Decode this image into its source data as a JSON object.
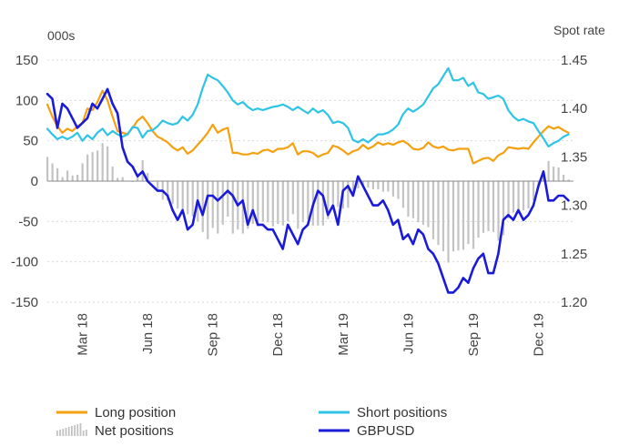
{
  "chart_data": {
    "type": "line",
    "title": "",
    "left_axis_label": "000s",
    "right_axis_label": "Spot rate",
    "left_ylim": [
      -150,
      150
    ],
    "left_ticks": [
      150,
      100,
      50,
      0,
      -50,
      -100,
      -150
    ],
    "left_tick_labels": [
      "150",
      "100",
      "50",
      "0",
      "-50",
      "-100",
      "-150"
    ],
    "right_ylim": [
      1.2,
      1.45
    ],
    "right_ticks": [
      1.45,
      1.4,
      1.35,
      1.3,
      1.25,
      1.2
    ],
    "right_tick_labels": [
      "1.45",
      "1.40",
      "1.35",
      "1.30",
      "1.25",
      "1.20"
    ],
    "x_tick_labels": [
      {
        "label": "Mar 18",
        "week": 7
      },
      {
        "label": "Jun 18",
        "week": 20
      },
      {
        "label": "Sep 18",
        "week": 33
      },
      {
        "label": "Dec 18",
        "week": 46
      },
      {
        "label": "Mar 19",
        "week": 59
      },
      {
        "label": "Jun 19",
        "week": 72
      },
      {
        "label": "Sep 19",
        "week": 85
      },
      {
        "label": "Dec 19",
        "week": 98
      }
    ],
    "x_range_weeks": [
      0,
      105
    ],
    "colors": {
      "long": "#f5a00f",
      "short": "#2ec4e6",
      "net": "#c3c3c3",
      "gbpusd": "#1a1adb",
      "grid": "#d9d9d9",
      "zero": "#888888"
    },
    "series": [
      {
        "name": "Long position",
        "axis": "left",
        "values": [
          95,
          80,
          68,
          60,
          65,
          62,
          68,
          72,
          90,
          88,
          98,
          112,
          100,
          80,
          62,
          60,
          58,
          66,
          75,
          80,
          72,
          62,
          55,
          52,
          48,
          42,
          38,
          42,
          34,
          38,
          45,
          52,
          60,
          70,
          60,
          64,
          66,
          35,
          35,
          33,
          33,
          35,
          34,
          38,
          39,
          36,
          40,
          40,
          42,
          47,
          33,
          37,
          37,
          35,
          30,
          33,
          35,
          44,
          42,
          38,
          33,
          37,
          39,
          45,
          40,
          43,
          48,
          45,
          47,
          45,
          48,
          50,
          46,
          40,
          39,
          41,
          48,
          43,
          41,
          43,
          39,
          38,
          40,
          40,
          40,
          22,
          25,
          28,
          29,
          25,
          32,
          35,
          42,
          41,
          40,
          41,
          40,
          48,
          55,
          62,
          68,
          65,
          67,
          63,
          60
        ]
      },
      {
        "name": "Short positions",
        "axis": "left",
        "values": [
          65,
          58,
          52,
          55,
          52,
          55,
          60,
          50,
          57,
          52,
          60,
          65,
          57,
          62,
          58,
          55,
          58,
          67,
          66,
          54,
          62,
          63,
          68,
          75,
          72,
          70,
          72,
          80,
          75,
          82,
          95,
          115,
          132,
          128,
          125,
          118,
          110,
          100,
          95,
          98,
          92,
          88,
          90,
          88,
          90,
          92,
          93,
          95,
          92,
          88,
          92,
          88,
          84,
          90,
          85,
          88,
          82,
          72,
          74,
          72,
          66,
          51,
          48,
          52,
          48,
          53,
          58,
          58,
          60,
          64,
          70,
          83,
          90,
          86,
          90,
          95,
          105,
          115,
          120,
          130,
          140,
          125,
          125,
          128,
          118,
          122,
          110,
          108,
          102,
          104,
          106,
          102,
          88,
          80,
          75,
          77,
          74,
          72,
          62,
          53,
          43,
          47,
          50,
          55,
          58
        ]
      },
      {
        "name": "Net positions",
        "axis": "left",
        "type": "bar",
        "values": [
          30,
          22,
          16,
          5,
          13,
          7,
          8,
          22,
          33,
          36,
          38,
          47,
          43,
          18,
          4,
          5,
          0,
          -1,
          9,
          26,
          10,
          -1,
          -13,
          -23,
          -24,
          -28,
          -34,
          -38,
          -41,
          -44,
          -50,
          -63,
          -72,
          -58,
          -65,
          -54,
          -44,
          -65,
          -60,
          -65,
          -59,
          -53,
          -56,
          -50,
          -51,
          -56,
          -53,
          -55,
          -50,
          -41,
          -59,
          -51,
          -47,
          -55,
          -55,
          -55,
          -47,
          -28,
          -32,
          -34,
          -33,
          -14,
          -9,
          -7,
          -8,
          -10,
          -10,
          -13,
          -13,
          -19,
          -22,
          -33,
          -44,
          -46,
          -51,
          -54,
          -57,
          -72,
          -79,
          -87,
          -101,
          -87,
          -86,
          -85,
          -78,
          -84,
          -70,
          -64,
          -62,
          -63,
          -74,
          -67,
          -46,
          -39,
          -35,
          -36,
          -34,
          -24,
          -7,
          9,
          25,
          18,
          17,
          8,
          2
        ]
      },
      {
        "name": "GBPUSD",
        "axis": "right",
        "values": [
          1.415,
          1.41,
          1.38,
          1.405,
          1.4,
          1.39,
          1.38,
          1.385,
          1.39,
          1.405,
          1.4,
          1.41,
          1.42,
          1.405,
          1.395,
          1.36,
          1.345,
          1.34,
          1.33,
          1.335,
          1.325,
          1.32,
          1.315,
          1.315,
          1.31,
          1.295,
          1.285,
          1.295,
          1.275,
          1.28,
          1.305,
          1.29,
          1.31,
          1.31,
          1.305,
          1.31,
          1.315,
          1.31,
          1.3,
          1.305,
          1.28,
          1.295,
          1.28,
          1.28,
          1.275,
          1.275,
          1.265,
          1.255,
          1.28,
          1.27,
          1.26,
          1.275,
          1.28,
          1.3,
          1.315,
          1.31,
          1.29,
          1.3,
          1.28,
          1.315,
          1.32,
          1.31,
          1.33,
          1.32,
          1.31,
          1.3,
          1.3,
          1.305,
          1.295,
          1.28,
          1.285,
          1.265,
          1.27,
          1.26,
          1.275,
          1.27,
          1.255,
          1.25,
          1.24,
          1.225,
          1.21,
          1.21,
          1.215,
          1.225,
          1.22,
          1.235,
          1.245,
          1.25,
          1.23,
          1.23,
          1.25,
          1.285,
          1.29,
          1.285,
          1.295,
          1.285,
          1.29,
          1.3,
          1.32,
          1.335,
          1.305,
          1.305,
          1.31,
          1.31,
          1.305
        ]
      }
    ],
    "legend": [
      {
        "label": "Long position",
        "series": "long"
      },
      {
        "label": "Short positions",
        "series": "short"
      },
      {
        "label": "Net positions",
        "series": "net"
      },
      {
        "label": "GBPUSD",
        "series": "gbpusd"
      }
    ],
    "legend_position": "bottom"
  }
}
